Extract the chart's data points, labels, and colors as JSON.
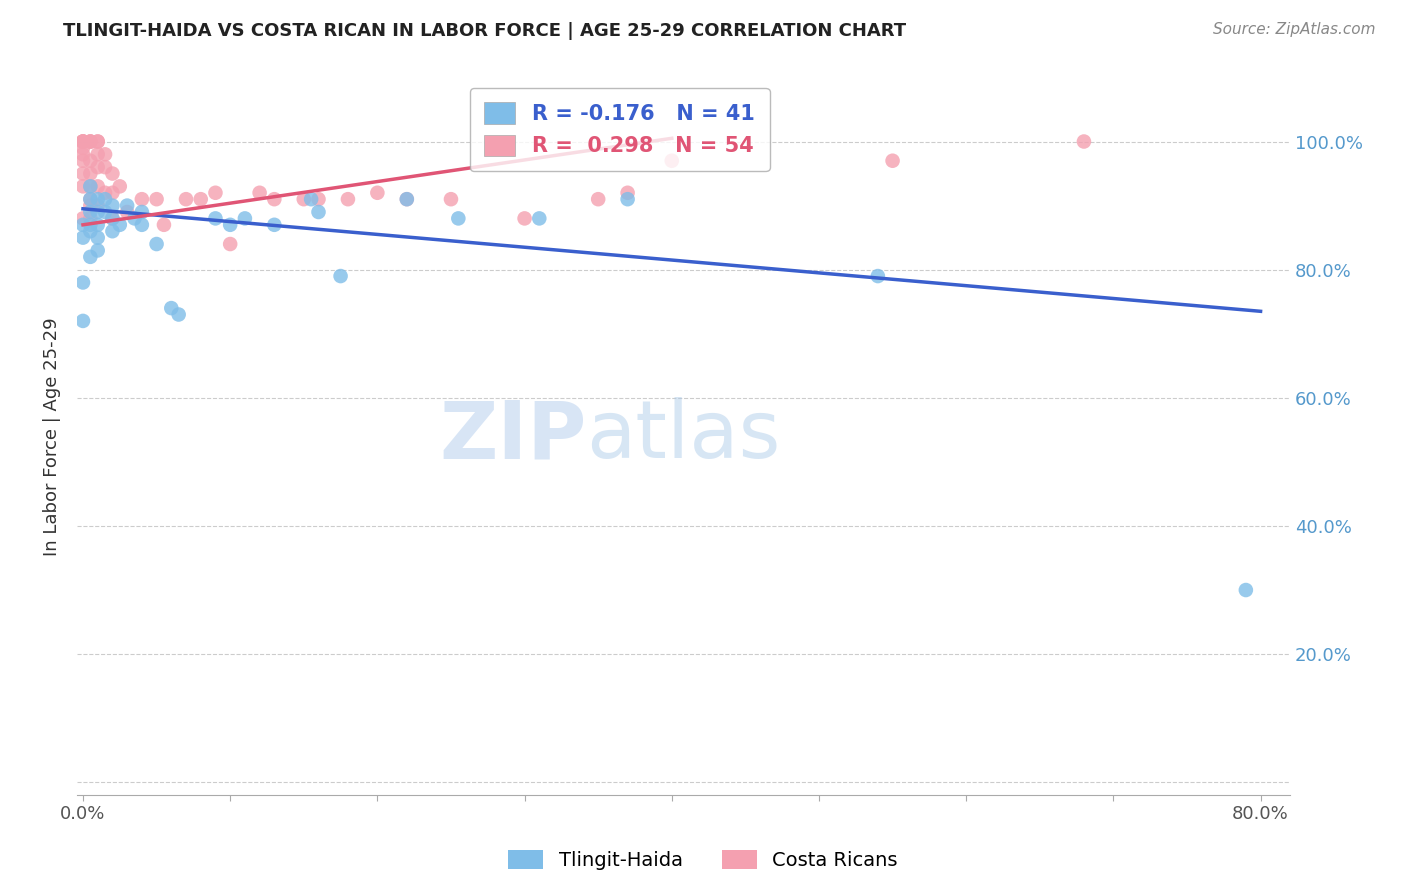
{
  "title": "TLINGIT-HAIDA VS COSTA RICAN IN LABOR FORCE | AGE 25-29 CORRELATION CHART",
  "source": "Source: ZipAtlas.com",
  "ylabel": "In Labor Force | Age 25-29",
  "xlim": [
    -0.004,
    0.82
  ],
  "ylim": [
    -0.02,
    1.1
  ],
  "x_tick_positions": [
    0.0,
    0.1,
    0.2,
    0.3,
    0.4,
    0.5,
    0.6,
    0.7,
    0.8
  ],
  "x_tick_labels": [
    "0.0%",
    "",
    "",
    "",
    "",
    "",
    "",
    "",
    "80.0%"
  ],
  "y_tick_positions": [
    0.0,
    0.2,
    0.4,
    0.6,
    0.8,
    1.0
  ],
  "y_tick_labels_right": [
    "",
    "20.0%",
    "40.0%",
    "60.0%",
    "80.0%",
    "100.0%"
  ],
  "blue_color": "#7fbde8",
  "pink_color": "#f4a0b0",
  "blue_line_color": "#3a5fcd",
  "pink_line_color": "#e05575",
  "R_blue": -0.176,
  "N_blue": 41,
  "R_pink": 0.298,
  "N_pink": 54,
  "blue_line_x0": 0.0,
  "blue_line_y0": 0.895,
  "blue_line_x1": 0.8,
  "blue_line_y1": 0.735,
  "pink_line_x0": 0.0,
  "pink_line_y0": 0.87,
  "pink_line_x1": 0.4,
  "pink_line_y1": 1.005,
  "tlingit_x": [
    0.0,
    0.0,
    0.0,
    0.0,
    0.005,
    0.005,
    0.005,
    0.005,
    0.005,
    0.005,
    0.01,
    0.01,
    0.01,
    0.01,
    0.01,
    0.015,
    0.015,
    0.02,
    0.02,
    0.02,
    0.025,
    0.03,
    0.035,
    0.04,
    0.04,
    0.05,
    0.06,
    0.065,
    0.09,
    0.1,
    0.11,
    0.13,
    0.155,
    0.16,
    0.175,
    0.22,
    0.255,
    0.31,
    0.37,
    0.54,
    0.79
  ],
  "tlingit_y": [
    0.87,
    0.85,
    0.78,
    0.72,
    0.93,
    0.91,
    0.89,
    0.87,
    0.86,
    0.82,
    0.91,
    0.89,
    0.87,
    0.85,
    0.83,
    0.91,
    0.89,
    0.9,
    0.88,
    0.86,
    0.87,
    0.9,
    0.88,
    0.89,
    0.87,
    0.84,
    0.74,
    0.73,
    0.88,
    0.87,
    0.88,
    0.87,
    0.91,
    0.89,
    0.79,
    0.91,
    0.88,
    0.88,
    0.91,
    0.79,
    0.3
  ],
  "costarican_x": [
    0.0,
    0.0,
    0.0,
    0.0,
    0.0,
    0.0,
    0.0,
    0.0,
    0.0,
    0.0,
    0.005,
    0.005,
    0.005,
    0.005,
    0.005,
    0.005,
    0.005,
    0.005,
    0.005,
    0.01,
    0.01,
    0.01,
    0.01,
    0.01,
    0.01,
    0.015,
    0.015,
    0.015,
    0.02,
    0.02,
    0.02,
    0.025,
    0.03,
    0.04,
    0.05,
    0.055,
    0.07,
    0.08,
    0.09,
    0.1,
    0.12,
    0.13,
    0.15,
    0.16,
    0.18,
    0.2,
    0.22,
    0.25,
    0.3,
    0.35,
    0.37,
    0.4,
    0.55,
    0.68
  ],
  "costarican_y": [
    1.0,
    1.0,
    1.0,
    1.0,
    0.99,
    0.98,
    0.97,
    0.95,
    0.93,
    0.88,
    1.0,
    1.0,
    1.0,
    0.97,
    0.95,
    0.93,
    0.91,
    0.9,
    0.88,
    1.0,
    1.0,
    0.98,
    0.96,
    0.93,
    0.9,
    0.98,
    0.96,
    0.92,
    0.95,
    0.92,
    0.88,
    0.93,
    0.89,
    0.91,
    0.91,
    0.87,
    0.91,
    0.91,
    0.92,
    0.84,
    0.92,
    0.91,
    0.91,
    0.91,
    0.91,
    0.92,
    0.91,
    0.91,
    0.88,
    0.91,
    0.92,
    0.97,
    0.97,
    1.0
  ],
  "watermark_zip": "ZIP",
  "watermark_atlas": "atlas",
  "background_color": "#ffffff",
  "grid_color": "#cccccc"
}
